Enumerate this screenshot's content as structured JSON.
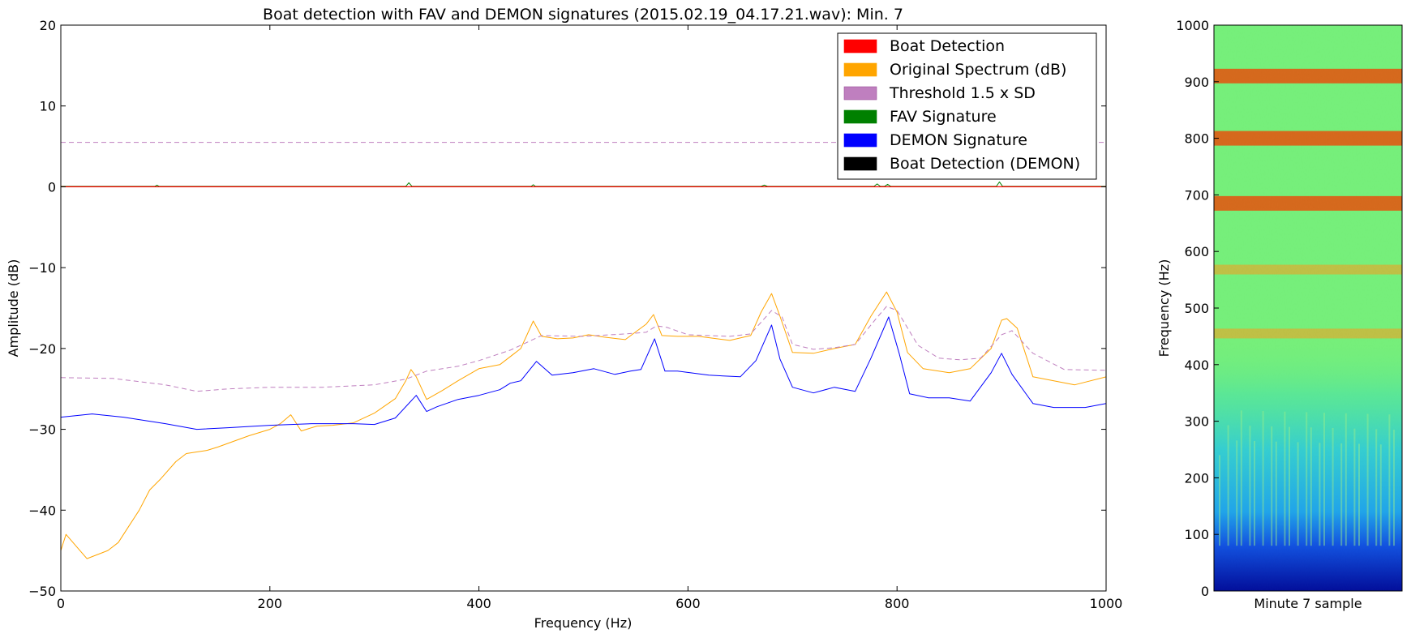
{
  "chart_data": [
    {
      "type": "line",
      "title": "Boat detection with FAV and DEMON signatures (2015.02.19_04.17.21.wav): Min. 7",
      "xlabel": "Frequency (Hz)",
      "ylabel": "Amplitude (dB)",
      "xlim": [
        0,
        1000
      ],
      "ylim": [
        -50,
        20
      ],
      "xticks": [
        "0",
        "200",
        "400",
        "600",
        "800",
        "1000"
      ],
      "yticks": [
        "20",
        "10",
        "0",
        "−10",
        "−20",
        "−30",
        "−40",
        "−50"
      ],
      "grid": false,
      "legend_position": "top-right",
      "legend": [
        {
          "label": "Boat Detection",
          "color": "#ff0000"
        },
        {
          "label": "Original Spectrum (dB)",
          "color": "#ffa500"
        },
        {
          "label": "Threshold 1.5 x SD",
          "color": "#bf7fbf"
        },
        {
          "label": "FAV Signature",
          "color": "#008000"
        },
        {
          "label": "DEMON Signature",
          "color": "#0000ff"
        },
        {
          "label": "Boat Detection (DEMON)",
          "color": "#000000"
        }
      ],
      "series": [
        {
          "name": "Original Spectrum (dB)",
          "color": "#ffa500",
          "x": [
            0,
            5,
            15,
            25,
            35,
            45,
            55,
            65,
            75,
            85,
            95,
            110,
            120,
            130,
            140,
            150,
            165,
            180,
            200,
            210,
            220,
            230,
            245,
            260,
            280,
            300,
            320,
            330,
            335,
            340,
            350,
            365,
            380,
            400,
            420,
            440,
            452,
            460,
            475,
            490,
            505,
            520,
            540,
            560,
            567,
            575,
            590,
            610,
            640,
            660,
            670,
            680,
            688,
            700,
            720,
            740,
            760,
            775,
            790,
            800,
            810,
            825,
            850,
            870,
            890,
            900,
            905,
            915,
            930,
            950,
            970,
            1000
          ],
          "y": [
            -45,
            -43,
            -44.5,
            -46,
            -45.5,
            -45,
            -44,
            -42,
            -40,
            -37.5,
            -36.2,
            -34,
            -33,
            -32.8,
            -32.6,
            -32.2,
            -31.5,
            -30.8,
            -30,
            -29.3,
            -28.2,
            -30.2,
            -29.6,
            -29.5,
            -29.2,
            -28,
            -26.2,
            -24,
            -22.6,
            -23.5,
            -26.3,
            -25.2,
            -24,
            -22.5,
            -22,
            -20,
            -16.6,
            -18.5,
            -18.8,
            -18.7,
            -18.3,
            -18.6,
            -18.9,
            -17,
            -15.8,
            -18.4,
            -18.5,
            -18.5,
            -19,
            -18.4,
            -15.5,
            -13.2,
            -16,
            -20.5,
            -20.6,
            -20,
            -19.5,
            -16,
            -13,
            -15.5,
            -20.5,
            -22.5,
            -23,
            -22.5,
            -20,
            -16.5,
            -16.3,
            -17.5,
            -23.5,
            -24,
            -24.5,
            -23.5
          ]
        },
        {
          "name": "Threshold 1.5 x SD",
          "color": "#bf7fbf",
          "x": [
            0,
            50,
            100,
            130,
            160,
            200,
            250,
            300,
            330,
            350,
            380,
            400,
            430,
            460,
            500,
            540,
            560,
            570,
            580,
            600,
            640,
            660,
            680,
            690,
            700,
            720,
            740,
            760,
            780,
            790,
            800,
            820,
            840,
            860,
            880,
            900,
            910,
            930,
            960,
            1000
          ],
          "y": [
            -23.6,
            -23.7,
            -24.5,
            -25.3,
            -25,
            -24.8,
            -24.8,
            -24.5,
            -23.8,
            -22.8,
            -22.2,
            -21.5,
            -20.2,
            -18.4,
            -18.5,
            -18.2,
            -18,
            -17.2,
            -17.4,
            -18.3,
            -18.5,
            -18.2,
            -15.3,
            -16.1,
            -19.5,
            -20.1,
            -19.9,
            -19.5,
            -16.3,
            -14.8,
            -15.3,
            -19.6,
            -21.2,
            -21.4,
            -21.2,
            -18.3,
            -17.8,
            -20.6,
            -22.6,
            -22.7
          ]
        },
        {
          "name": "DEMON Signature",
          "color": "#0000ff",
          "x": [
            0,
            30,
            60,
            100,
            130,
            160,
            200,
            240,
            280,
            300,
            320,
            340,
            350,
            360,
            380,
            400,
            420,
            430,
            440,
            455,
            470,
            490,
            510,
            530,
            545,
            555,
            568,
            578,
            590,
            620,
            650,
            665,
            680,
            688,
            700,
            720,
            740,
            760,
            775,
            792,
            802,
            812,
            830,
            850,
            870,
            890,
            900,
            910,
            930,
            950,
            980,
            1000
          ],
          "y": [
            -28.5,
            -28.1,
            -28.5,
            -29.3,
            -30,
            -29.8,
            -29.5,
            -29.3,
            -29.3,
            -29.4,
            -28.6,
            -25.8,
            -27.8,
            -27.2,
            -26.3,
            -25.8,
            -25.1,
            -24.3,
            -24,
            -21.6,
            -23.3,
            -23,
            -22.5,
            -23.2,
            -22.8,
            -22.6,
            -18.8,
            -22.8,
            -22.8,
            -23.3,
            -23.5,
            -21.5,
            -17.1,
            -21.3,
            -24.8,
            -25.5,
            -24.8,
            -25.3,
            -21.2,
            -16.1,
            -20.6,
            -25.6,
            -26.1,
            -26.1,
            -26.5,
            -23,
            -20.6,
            -23.2,
            -26.8,
            -27.3,
            -27.3,
            -26.8
          ]
        },
        {
          "name": "Threshold level",
          "color": "#bf7fbf",
          "style": "dashed",
          "x": [
            0,
            1000
          ],
          "y": [
            5.5,
            5.5
          ]
        },
        {
          "name": "FAV Signature",
          "color": "#008000",
          "x": [
            0,
            90,
            92,
            94,
            330,
            333,
            336,
            450,
            452,
            454,
            670,
            673,
            676,
            778,
            781,
            784,
            788,
            791,
            794,
            895,
            898,
            901,
            1000
          ],
          "y": [
            0.05,
            0.05,
            0.2,
            0.05,
            0.05,
            0.5,
            0.05,
            0.05,
            0.25,
            0.05,
            0.05,
            0.2,
            0.05,
            0.05,
            0.35,
            0.05,
            0.05,
            0.3,
            0.05,
            0.05,
            0.6,
            0.05,
            0.05
          ]
        },
        {
          "name": "Boat Detection",
          "color": "#ff0000",
          "x": [
            0,
            1000
          ],
          "y": [
            0,
            0
          ]
        }
      ]
    },
    {
      "type": "heatmap",
      "title": "",
      "xlabel": "Minute 7 sample",
      "ylabel": "Frequency (Hz)",
      "ylim": [
        0,
        1000
      ],
      "yticks": [
        "1000",
        "900",
        "800",
        "700",
        "600",
        "500",
        "400",
        "300",
        "200",
        "100",
        "0"
      ],
      "colormap": "jet",
      "bands": [
        {
          "freq": 910,
          "level": "high"
        },
        {
          "freq": 800,
          "level": "high"
        },
        {
          "freq": 685,
          "level": "high"
        },
        {
          "freq": 568,
          "level": "medium"
        },
        {
          "freq": 455,
          "level": "medium"
        }
      ]
    }
  ]
}
